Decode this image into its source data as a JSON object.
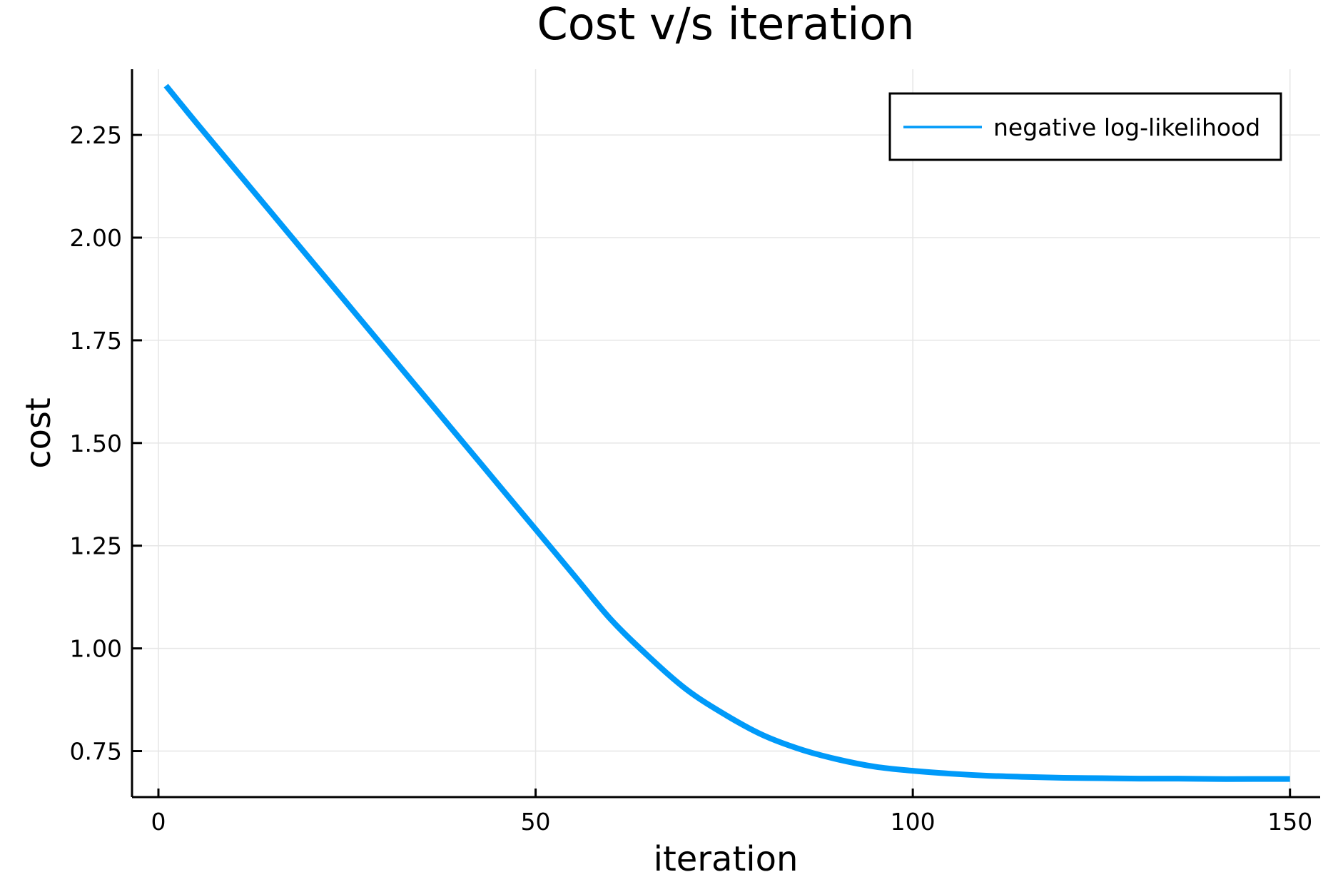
{
  "chart_data": {
    "type": "line",
    "title": "Cost v/s iteration",
    "xlabel": "iteration",
    "ylabel": "cost",
    "xlim": [
      -3.5,
      154
    ],
    "ylim": [
      0.638,
      2.41
    ],
    "xticks": [
      0,
      50,
      100,
      150
    ],
    "xtick_labels": [
      "0",
      "50",
      "100",
      "150"
    ],
    "yticks": [
      0.75,
      1.0,
      1.25,
      1.5,
      1.75,
      2.0,
      2.25
    ],
    "ytick_labels": [
      "0.75",
      "1.00",
      "1.25",
      "1.50",
      "1.75",
      "2.00",
      "2.25"
    ],
    "grid": true,
    "legend_position": "top-right",
    "series": [
      {
        "name": "negative log-likelihood",
        "color": "#009af9",
        "x": [
          1,
          5,
          10,
          15,
          20,
          25,
          30,
          35,
          40,
          45,
          50,
          55,
          60,
          65,
          70,
          75,
          80,
          85,
          90,
          95,
          100,
          105,
          110,
          115,
          120,
          125,
          130,
          135,
          140,
          145,
          150
        ],
        "y": [
          2.37,
          2.28,
          2.17,
          2.06,
          1.95,
          1.84,
          1.73,
          1.62,
          1.51,
          1.4,
          1.29,
          1.18,
          1.07,
          0.98,
          0.9,
          0.84,
          0.79,
          0.755,
          0.73,
          0.712,
          0.702,
          0.695,
          0.69,
          0.687,
          0.685,
          0.684,
          0.683,
          0.683,
          0.682,
          0.682,
          0.682
        ]
      }
    ]
  }
}
